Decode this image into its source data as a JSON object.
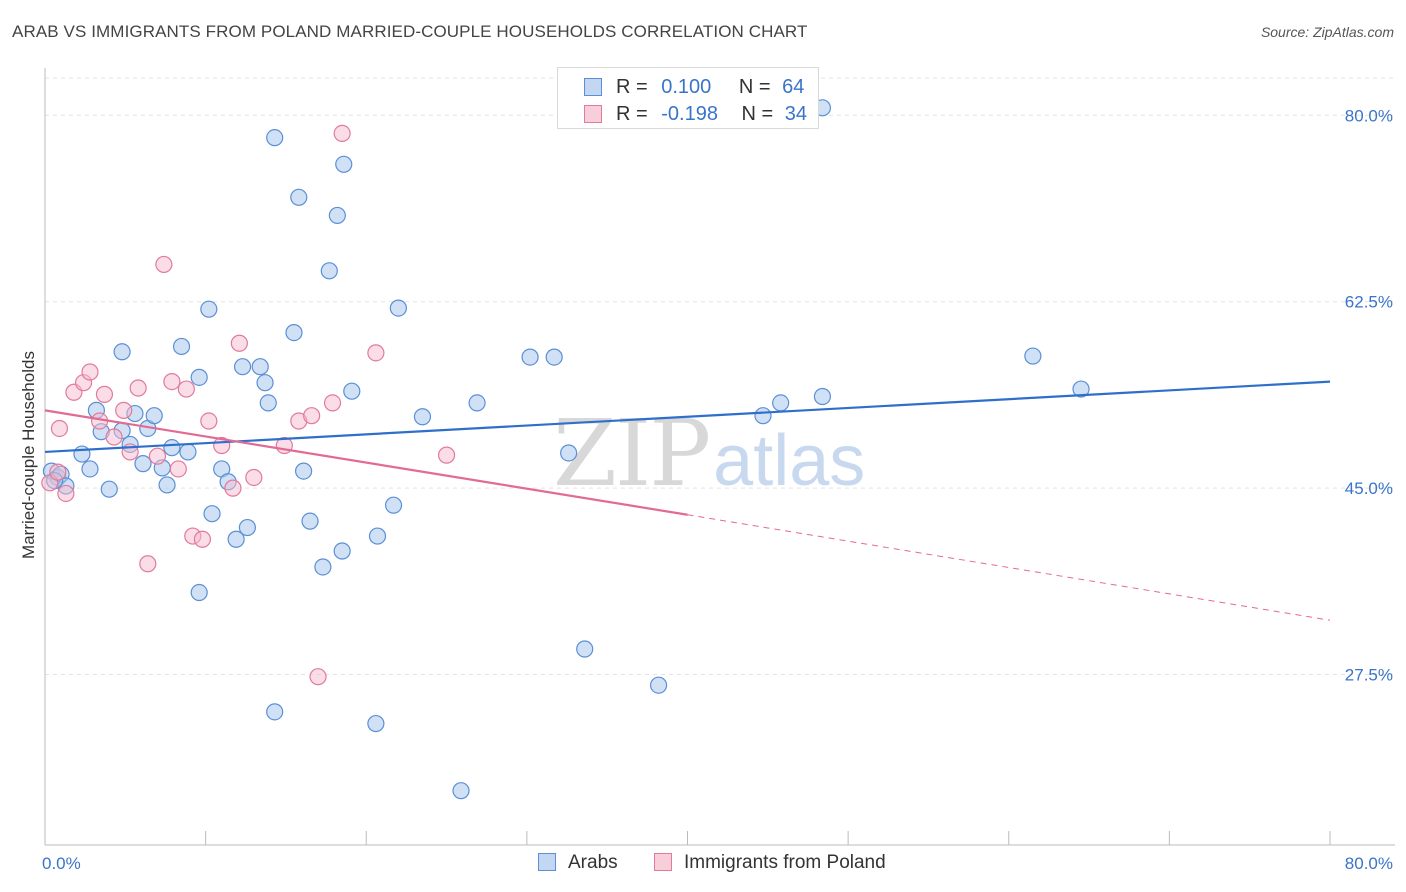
{
  "title": "ARAB VS IMMIGRANTS FROM POLAND MARRIED-COUPLE HOUSEHOLDS CORRELATION CHART",
  "source": "Source: ZipAtlas.com",
  "watermark": {
    "zip": "ZIP",
    "atlas": "atlas"
  },
  "colors": {
    "arabs_fill": "#aac8ef",
    "arabs_stroke": "#5b8fd6",
    "arabs_line": "#2f6fcc",
    "poland_fill": "#f6bccd",
    "poland_stroke": "#e27a9c",
    "poland_line": "#e26b93",
    "tick_blue": "#3a74c9",
    "grid": "#e3e3e3"
  },
  "legend": {
    "rows": [
      {
        "r_label": "R =",
        "r_value": "0.100",
        "n_label": "N =",
        "n_value": "64"
      },
      {
        "r_label": "R =",
        "r_value": "-0.198",
        "n_label": "N =",
        "n_value": "34"
      }
    ]
  },
  "bottom_legend": [
    "Arabs",
    "Immigrants from Poland"
  ],
  "chart_data": {
    "type": "scatter",
    "xlabel": "",
    "ylabel": "Married-couple Households",
    "xlim": [
      0,
      80
    ],
    "ylim": [
      11.5,
      83.5
    ],
    "x_tick_labels": [
      "0.0%",
      "80.0%"
    ],
    "y_ticks": [
      {
        "value": 27.5,
        "label": "27.5%"
      },
      {
        "value": 45.0,
        "label": "45.0%"
      },
      {
        "value": 62.5,
        "label": "62.5%"
      },
      {
        "value": 80.0,
        "label": "80.0%"
      }
    ],
    "series": [
      {
        "name": "Arabs",
        "r": 0.1,
        "n": 64,
        "trend": {
          "x": [
            0,
            80
          ],
          "y": [
            48.4,
            55.0
          ]
        },
        "points": [
          [
            0.4,
            46.6
          ],
          [
            0.8,
            46.0
          ],
          [
            1.0,
            46.3
          ],
          [
            1.3,
            45.2
          ],
          [
            2.3,
            48.2
          ],
          [
            2.8,
            46.8
          ],
          [
            3.2,
            52.3
          ],
          [
            3.5,
            50.3
          ],
          [
            4.0,
            44.9
          ],
          [
            4.8,
            50.4
          ],
          [
            4.8,
            57.8
          ],
          [
            5.3,
            49.1
          ],
          [
            5.6,
            52.0
          ],
          [
            6.1,
            47.3
          ],
          [
            6.4,
            50.6
          ],
          [
            6.8,
            51.8
          ],
          [
            7.3,
            46.9
          ],
          [
            7.6,
            45.3
          ],
          [
            7.9,
            48.8
          ],
          [
            8.5,
            58.3
          ],
          [
            8.9,
            48.4
          ],
          [
            9.6,
            55.4
          ],
          [
            10.2,
            61.8
          ],
          [
            10.4,
            42.6
          ],
          [
            11.0,
            46.8
          ],
          [
            11.4,
            45.6
          ],
          [
            11.9,
            40.2
          ],
          [
            12.3,
            56.4
          ],
          [
            12.6,
            41.3
          ],
          [
            13.4,
            56.4
          ],
          [
            13.7,
            54.9
          ],
          [
            13.9,
            53.0
          ],
          [
            14.3,
            77.9
          ],
          [
            15.5,
            59.6
          ],
          [
            15.8,
            72.3
          ],
          [
            16.1,
            46.6
          ],
          [
            16.5,
            41.9
          ],
          [
            17.3,
            37.6
          ],
          [
            17.7,
            65.4
          ],
          [
            18.2,
            70.6
          ],
          [
            18.5,
            39.1
          ],
          [
            18.6,
            75.4
          ],
          [
            19.1,
            54.1
          ],
          [
            20.6,
            22.9
          ],
          [
            20.7,
            40.5
          ],
          [
            21.7,
            43.4
          ],
          [
            22.0,
            61.9
          ],
          [
            23.5,
            51.7
          ],
          [
            25.9,
            16.6
          ],
          [
            26.9,
            53.0
          ],
          [
            30.2,
            57.3
          ],
          [
            31.7,
            57.3
          ],
          [
            32.6,
            48.3
          ],
          [
            33.6,
            29.9
          ],
          [
            38.2,
            26.5
          ],
          [
            45.8,
            53.0
          ],
          [
            44.7,
            51.8
          ],
          [
            48.4,
            53.6
          ],
          [
            61.5,
            57.4
          ],
          [
            64.5,
            54.3
          ],
          [
            14.3,
            24.0
          ],
          [
            0.6,
            45.7
          ],
          [
            9.6,
            35.2
          ],
          [
            48.4,
            80.7
          ]
        ]
      },
      {
        "name": "Immigrants from Poland",
        "r": -0.198,
        "n": 34,
        "trend": {
          "x": [
            0,
            40
          ],
          "y": [
            52.3,
            42.5
          ],
          "dashed_to": {
            "x": 80,
            "y": 32.6
          }
        },
        "points": [
          [
            0.3,
            45.5
          ],
          [
            0.8,
            46.5
          ],
          [
            0.9,
            50.6
          ],
          [
            1.3,
            44.5
          ],
          [
            1.8,
            54.0
          ],
          [
            2.4,
            54.9
          ],
          [
            2.8,
            55.9
          ],
          [
            3.4,
            51.3
          ],
          [
            3.7,
            53.8
          ],
          [
            4.3,
            49.8
          ],
          [
            4.9,
            52.3
          ],
          [
            5.3,
            48.4
          ],
          [
            5.8,
            54.4
          ],
          [
            6.4,
            37.9
          ],
          [
            7.0,
            48.0
          ],
          [
            7.4,
            66.0
          ],
          [
            7.9,
            55.0
          ],
          [
            8.3,
            46.8
          ],
          [
            8.8,
            54.3
          ],
          [
            9.2,
            40.5
          ],
          [
            9.8,
            40.2
          ],
          [
            10.2,
            51.3
          ],
          [
            11.0,
            49.0
          ],
          [
            11.7,
            45.0
          ],
          [
            12.1,
            58.6
          ],
          [
            13.0,
            46.0
          ],
          [
            14.9,
            49.0
          ],
          [
            15.8,
            51.3
          ],
          [
            16.6,
            51.8
          ],
          [
            17.0,
            27.3
          ],
          [
            17.9,
            53.0
          ],
          [
            18.5,
            78.3
          ],
          [
            20.6,
            57.7
          ],
          [
            25.0,
            48.1
          ]
        ]
      }
    ]
  }
}
